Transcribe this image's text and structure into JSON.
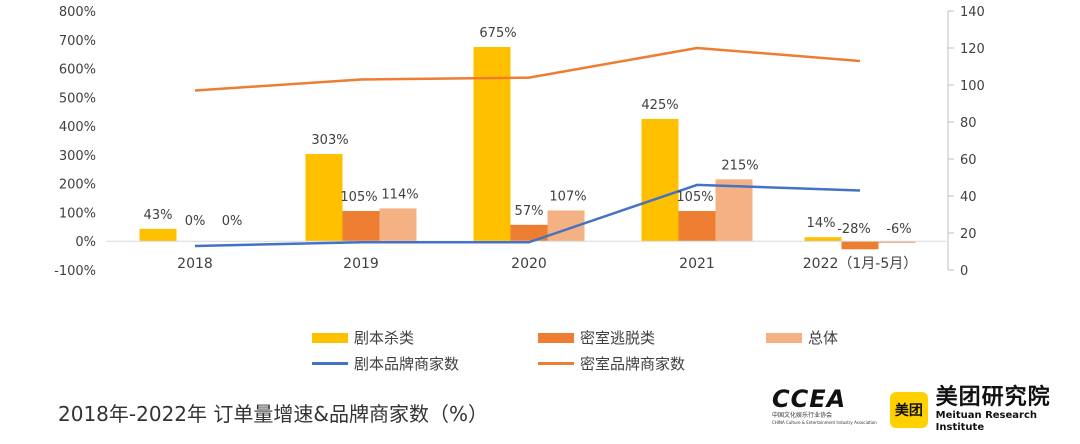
{
  "chart_data": {
    "type": "bar",
    "title": "2018年-2022年 订单量增速&品牌商家数（%）",
    "categories": [
      "2018",
      "2019",
      "2020",
      "2021",
      "2022（1月-5月）"
    ],
    "y_left": {
      "ticks": [
        "800%",
        "700%",
        "600%",
        "500%",
        "400%",
        "300%",
        "200%",
        "100%",
        "0%",
        "-100%"
      ],
      "ylim": [
        -100,
        800
      ]
    },
    "y_right": {
      "ticks": [
        "140",
        "120",
        "100",
        "80",
        "60",
        "40",
        "20",
        "0"
      ],
      "ylim": [
        0,
        140
      ]
    },
    "series": [
      {
        "name": "剧本杀类",
        "kind": "bar",
        "axis": "left",
        "color": "#ffc000",
        "values": [
          43,
          303,
          675,
          425,
          14
        ],
        "labels": [
          "43%",
          "303%",
          "675%",
          "425%",
          "14%"
        ]
      },
      {
        "name": "密室逃脱类",
        "kind": "bar",
        "axis": "left",
        "color": "#ed7d31",
        "values": [
          0,
          105,
          57,
          105,
          -28
        ],
        "labels": [
          "0%",
          "105%",
          "57%",
          "105%",
          "-28%"
        ]
      },
      {
        "name": "总体",
        "kind": "bar",
        "axis": "left",
        "color": "#f4b183",
        "values": [
          0,
          114,
          107,
          215,
          -6
        ],
        "labels": [
          "0%",
          "114%",
          "107%",
          "215%",
          "-6%"
        ]
      },
      {
        "name": "剧本品牌商家数",
        "kind": "line",
        "axis": "right",
        "color": "#4472c4",
        "values": [
          13,
          15,
          15,
          46,
          43
        ]
      },
      {
        "name": "密室品牌商家数",
        "kind": "line",
        "axis": "right",
        "color": "#ed7d31",
        "values": [
          97,
          103,
          104,
          120,
          113
        ]
      }
    ],
    "legend_position": "bottom"
  },
  "logos": {
    "ccea": "CCEA",
    "ccea_sub_cn": "中国文化娱乐行业协会",
    "ccea_sub_en": "CHINA Culture & Entertainment Industry Association",
    "meituan_badge": "美团",
    "meituan_cn": "美团研究院",
    "meituan_en": "Meituan Research Institute"
  }
}
